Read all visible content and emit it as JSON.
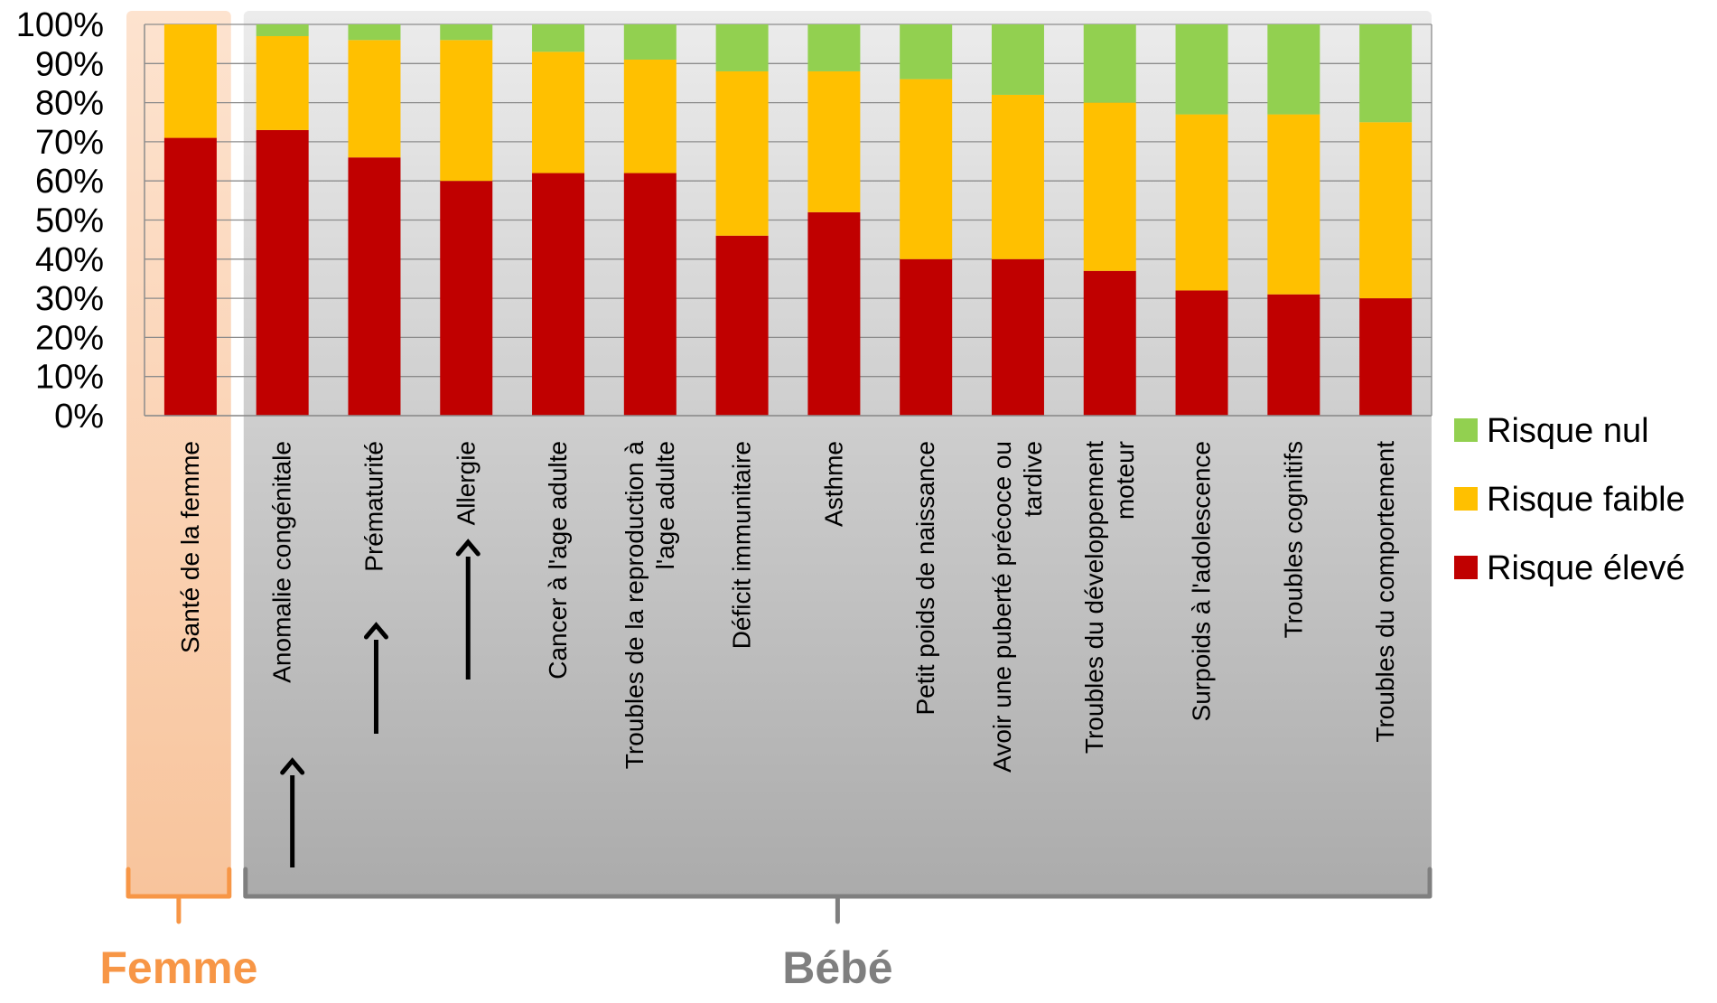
{
  "chart_data": {
    "type": "bar",
    "stacked": true,
    "normalized": true,
    "ylim": [
      0,
      100
    ],
    "yticks": [
      "0%",
      "10%",
      "20%",
      "30%",
      "40%",
      "50%",
      "60%",
      "70%",
      "80%",
      "90%",
      "100%"
    ],
    "grid": true,
    "legend_position": "right",
    "categories": [
      [
        "Santé de la femme"
      ],
      [
        "Anomalie congénitale"
      ],
      [
        "Prématurité"
      ],
      [
        "Allergie"
      ],
      [
        "Cancer à l'age adulte"
      ],
      [
        "Troubles de la reproduction à",
        "l'age adulte"
      ],
      [
        "Déficit immunitaire"
      ],
      [
        "Asthme"
      ],
      [
        "Petit poids de naissance"
      ],
      [
        "Avoir une puberté précoce ou",
        "tardive"
      ],
      [
        "Troubles du développement",
        "moteur"
      ],
      [
        "Surpoids à l'adolescence"
      ],
      [
        "Troubles cognitifs"
      ],
      [
        "Troubles du comportement"
      ]
    ],
    "series": [
      {
        "name": "Risque élevé",
        "color": "#C00000",
        "values": [
          71,
          73,
          66,
          60,
          62,
          62,
          46,
          52,
          40,
          40,
          37,
          32,
          31,
          30
        ]
      },
      {
        "name": "Risque faible",
        "color": "#FFC000",
        "values": [
          29,
          24,
          30,
          36,
          31,
          29,
          42,
          36,
          46,
          42,
          43,
          45,
          46,
          45
        ]
      },
      {
        "name": "Risque nul",
        "color": "#92D050",
        "values": [
          0,
          3,
          4,
          4,
          7,
          9,
          12,
          12,
          14,
          18,
          20,
          23,
          23,
          25
        ]
      }
    ],
    "legend_order": [
      "Risque nul",
      "Risque faible",
      "Risque élevé"
    ],
    "arrows_on": [
      "Anomalie congénitale",
      "Prématurité",
      "Allergie"
    ],
    "groups": [
      {
        "label": "Femme",
        "color": "#F79646",
        "first": 0,
        "last": 0
      },
      {
        "label": "Bébé",
        "color": "#7F7F7F",
        "first": 1,
        "last": 13
      }
    ]
  }
}
